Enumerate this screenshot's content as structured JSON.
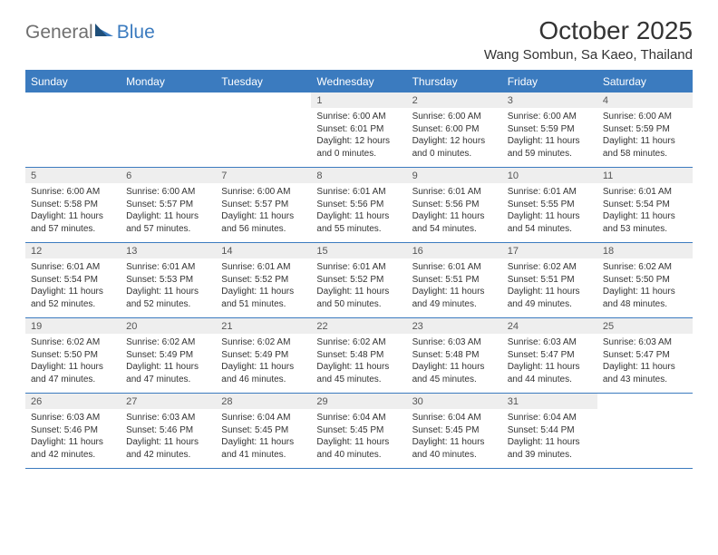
{
  "header": {
    "logo": {
      "text_general": "General",
      "text_blue": "Blue"
    },
    "month_title": "October 2025",
    "location": "Wang Sombun, Sa Kaeo, Thailand"
  },
  "colors": {
    "brand_blue": "#3b7bbf",
    "header_text": "#ffffff",
    "day_bar_bg": "#eeeeee",
    "body_text": "#333333",
    "background": "#ffffff"
  },
  "typography": {
    "month_title_fontsize": 28,
    "location_fontsize": 15,
    "day_header_fontsize": 12,
    "day_number_fontsize": 11,
    "body_fontsize": 10
  },
  "calendar": {
    "type": "table",
    "day_headers": [
      "Sunday",
      "Monday",
      "Tuesday",
      "Wednesday",
      "Thursday",
      "Friday",
      "Saturday"
    ],
    "weeks": [
      [
        {
          "day": "",
          "sunrise": "",
          "sunset": "",
          "daylight": ""
        },
        {
          "day": "",
          "sunrise": "",
          "sunset": "",
          "daylight": ""
        },
        {
          "day": "",
          "sunrise": "",
          "sunset": "",
          "daylight": ""
        },
        {
          "day": "1",
          "sunrise": "Sunrise: 6:00 AM",
          "sunset": "Sunset: 6:01 PM",
          "daylight": "Daylight: 12 hours and 0 minutes."
        },
        {
          "day": "2",
          "sunrise": "Sunrise: 6:00 AM",
          "sunset": "Sunset: 6:00 PM",
          "daylight": "Daylight: 12 hours and 0 minutes."
        },
        {
          "day": "3",
          "sunrise": "Sunrise: 6:00 AM",
          "sunset": "Sunset: 5:59 PM",
          "daylight": "Daylight: 11 hours and 59 minutes."
        },
        {
          "day": "4",
          "sunrise": "Sunrise: 6:00 AM",
          "sunset": "Sunset: 5:59 PM",
          "daylight": "Daylight: 11 hours and 58 minutes."
        }
      ],
      [
        {
          "day": "5",
          "sunrise": "Sunrise: 6:00 AM",
          "sunset": "Sunset: 5:58 PM",
          "daylight": "Daylight: 11 hours and 57 minutes."
        },
        {
          "day": "6",
          "sunrise": "Sunrise: 6:00 AM",
          "sunset": "Sunset: 5:57 PM",
          "daylight": "Daylight: 11 hours and 57 minutes."
        },
        {
          "day": "7",
          "sunrise": "Sunrise: 6:00 AM",
          "sunset": "Sunset: 5:57 PM",
          "daylight": "Daylight: 11 hours and 56 minutes."
        },
        {
          "day": "8",
          "sunrise": "Sunrise: 6:01 AM",
          "sunset": "Sunset: 5:56 PM",
          "daylight": "Daylight: 11 hours and 55 minutes."
        },
        {
          "day": "9",
          "sunrise": "Sunrise: 6:01 AM",
          "sunset": "Sunset: 5:56 PM",
          "daylight": "Daylight: 11 hours and 54 minutes."
        },
        {
          "day": "10",
          "sunrise": "Sunrise: 6:01 AM",
          "sunset": "Sunset: 5:55 PM",
          "daylight": "Daylight: 11 hours and 54 minutes."
        },
        {
          "day": "11",
          "sunrise": "Sunrise: 6:01 AM",
          "sunset": "Sunset: 5:54 PM",
          "daylight": "Daylight: 11 hours and 53 minutes."
        }
      ],
      [
        {
          "day": "12",
          "sunrise": "Sunrise: 6:01 AM",
          "sunset": "Sunset: 5:54 PM",
          "daylight": "Daylight: 11 hours and 52 minutes."
        },
        {
          "day": "13",
          "sunrise": "Sunrise: 6:01 AM",
          "sunset": "Sunset: 5:53 PM",
          "daylight": "Daylight: 11 hours and 52 minutes."
        },
        {
          "day": "14",
          "sunrise": "Sunrise: 6:01 AM",
          "sunset": "Sunset: 5:52 PM",
          "daylight": "Daylight: 11 hours and 51 minutes."
        },
        {
          "day": "15",
          "sunrise": "Sunrise: 6:01 AM",
          "sunset": "Sunset: 5:52 PM",
          "daylight": "Daylight: 11 hours and 50 minutes."
        },
        {
          "day": "16",
          "sunrise": "Sunrise: 6:01 AM",
          "sunset": "Sunset: 5:51 PM",
          "daylight": "Daylight: 11 hours and 49 minutes."
        },
        {
          "day": "17",
          "sunrise": "Sunrise: 6:02 AM",
          "sunset": "Sunset: 5:51 PM",
          "daylight": "Daylight: 11 hours and 49 minutes."
        },
        {
          "day": "18",
          "sunrise": "Sunrise: 6:02 AM",
          "sunset": "Sunset: 5:50 PM",
          "daylight": "Daylight: 11 hours and 48 minutes."
        }
      ],
      [
        {
          "day": "19",
          "sunrise": "Sunrise: 6:02 AM",
          "sunset": "Sunset: 5:50 PM",
          "daylight": "Daylight: 11 hours and 47 minutes."
        },
        {
          "day": "20",
          "sunrise": "Sunrise: 6:02 AM",
          "sunset": "Sunset: 5:49 PM",
          "daylight": "Daylight: 11 hours and 47 minutes."
        },
        {
          "day": "21",
          "sunrise": "Sunrise: 6:02 AM",
          "sunset": "Sunset: 5:49 PM",
          "daylight": "Daylight: 11 hours and 46 minutes."
        },
        {
          "day": "22",
          "sunrise": "Sunrise: 6:02 AM",
          "sunset": "Sunset: 5:48 PM",
          "daylight": "Daylight: 11 hours and 45 minutes."
        },
        {
          "day": "23",
          "sunrise": "Sunrise: 6:03 AM",
          "sunset": "Sunset: 5:48 PM",
          "daylight": "Daylight: 11 hours and 45 minutes."
        },
        {
          "day": "24",
          "sunrise": "Sunrise: 6:03 AM",
          "sunset": "Sunset: 5:47 PM",
          "daylight": "Daylight: 11 hours and 44 minutes."
        },
        {
          "day": "25",
          "sunrise": "Sunrise: 6:03 AM",
          "sunset": "Sunset: 5:47 PM",
          "daylight": "Daylight: 11 hours and 43 minutes."
        }
      ],
      [
        {
          "day": "26",
          "sunrise": "Sunrise: 6:03 AM",
          "sunset": "Sunset: 5:46 PM",
          "daylight": "Daylight: 11 hours and 42 minutes."
        },
        {
          "day": "27",
          "sunrise": "Sunrise: 6:03 AM",
          "sunset": "Sunset: 5:46 PM",
          "daylight": "Daylight: 11 hours and 42 minutes."
        },
        {
          "day": "28",
          "sunrise": "Sunrise: 6:04 AM",
          "sunset": "Sunset: 5:45 PM",
          "daylight": "Daylight: 11 hours and 41 minutes."
        },
        {
          "day": "29",
          "sunrise": "Sunrise: 6:04 AM",
          "sunset": "Sunset: 5:45 PM",
          "daylight": "Daylight: 11 hours and 40 minutes."
        },
        {
          "day": "30",
          "sunrise": "Sunrise: 6:04 AM",
          "sunset": "Sunset: 5:45 PM",
          "daylight": "Daylight: 11 hours and 40 minutes."
        },
        {
          "day": "31",
          "sunrise": "Sunrise: 6:04 AM",
          "sunset": "Sunset: 5:44 PM",
          "daylight": "Daylight: 11 hours and 39 minutes."
        },
        {
          "day": "",
          "sunrise": "",
          "sunset": "",
          "daylight": ""
        }
      ]
    ]
  }
}
